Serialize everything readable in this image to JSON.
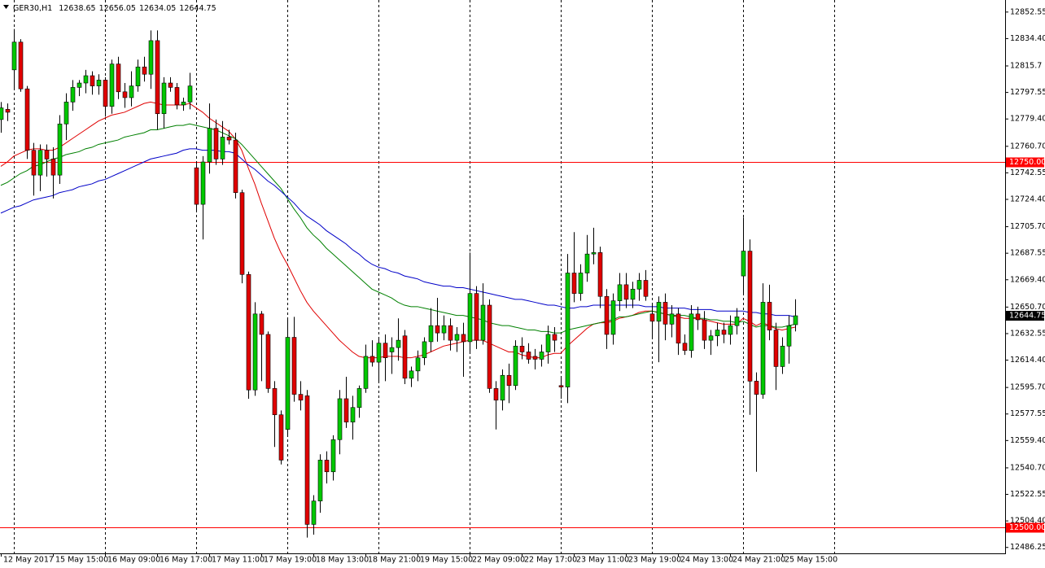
{
  "chart_data": {
    "type": "candlestick",
    "title": "GER30,H1",
    "categories": [
      "12 May 2017",
      null,
      null,
      null,
      null,
      null,
      null,
      null,
      "15 May 15:00",
      null,
      null,
      null,
      null,
      null,
      null,
      null,
      "16 May 09:00",
      null,
      null,
      null,
      null,
      null,
      null,
      null,
      "16 May 17:00",
      null,
      null,
      null,
      null,
      null,
      null,
      null,
      "17 May 11:00",
      null,
      null,
      null,
      null,
      null,
      null,
      null,
      "17 May 19:00",
      null,
      null,
      null,
      null,
      null,
      null,
      null,
      "18 May 13:00",
      null,
      null,
      null,
      null,
      null,
      null,
      null,
      "18 May 21:00",
      null,
      null,
      null,
      null,
      null,
      null,
      null,
      "19 May 15:00",
      null,
      null,
      null,
      null,
      null,
      null,
      null,
      "22 May 09:00",
      null,
      null,
      null,
      null,
      null,
      null,
      null,
      "22 May 17:00",
      null,
      null,
      null,
      null,
      null,
      null,
      null,
      "23 May 11:00",
      null,
      null,
      null,
      null,
      null,
      null,
      null,
      "23 May 19:00",
      null,
      null,
      null,
      null,
      null,
      null,
      null,
      "24 May 13:00",
      null,
      null,
      null,
      null,
      null,
      null,
      null,
      "24 May 21:00",
      null,
      null,
      null,
      null,
      null,
      null,
      null,
      "25 May 15:00",
      null,
      null
    ],
    "open": [
      12779,
      12786,
      12813,
      12832,
      12800,
      12758,
      12741,
      12758,
      12752,
      12741,
      12776,
      12791,
      12801,
      12804,
      12809,
      12802,
      12806,
      12788,
      12817,
      12798,
      12794,
      12802,
      12815,
      12810,
      12833,
      12783,
      12804,
      12801,
      12789,
      12791,
      12746,
      12721,
      12750,
      12773,
      12752,
      12767,
      12765,
      12729,
      12673,
      12594,
      12646,
      12632,
      12595,
      12577,
      12567,
      12630,
      12591,
      12590,
      12502,
      12518,
      12546,
      12538,
      12560,
      12588,
      12572,
      12582,
      12595,
      12617,
      12613,
      12626,
      12620,
      12623,
      12631,
      12602,
      12607,
      12616,
      12627,
      12638,
      12633,
      12638,
      12628,
      12632,
      12627,
      12660,
      12628,
      12652,
      12595,
      12587,
      12604,
      12597,
      12624,
      12620,
      12617,
      12615,
      12620,
      12632,
      12597,
      12596,
      12674,
      12660,
      12674,
      12687,
      12688,
      12658,
      12632,
      12655,
      12666,
      12656,
      12663,
      12669,
      12646,
      12641,
      12654,
      12639,
      12646,
      12626,
      12621,
      12646,
      12642,
      12628,
      12631,
      12635,
      12632,
      12638,
      12672,
      12689,
      12600,
      12591,
      12654,
      12635,
      12610,
      12624,
      12638.65
    ],
    "high": [
      12791,
      12790,
      12841,
      12834,
      12802,
      12763,
      12762,
      12762,
      12760,
      12782,
      12797,
      12806,
      12806,
      12813,
      12812,
      12810,
      12808,
      12820,
      12822,
      12804,
      12812,
      12820,
      12822,
      12840,
      12840,
      12808,
      12808,
      12804,
      12794,
      12811,
      12750,
      12754,
      12790,
      12779,
      12778,
      12772,
      12770,
      12731,
      12675,
      12654,
      12648,
      12634,
      12600,
      12580,
      12642,
      12644,
      12600,
      12594,
      12522,
      12550,
      12552,
      12563,
      12594,
      12603,
      12590,
      12597,
      12625,
      12628,
      12630,
      12632,
      12630,
      12643,
      12635,
      12610,
      12621,
      12630,
      12650,
      12657,
      12645,
      12643,
      12637,
      12640,
      12688,
      12665,
      12667,
      12656,
      12600,
      12608,
      12612,
      12628,
      12630,
      12626,
      12622,
      12625,
      12638,
      12637,
      12602,
      12687,
      12702,
      12680,
      12700,
      12705,
      12692,
      12663,
      12660,
      12674,
      12674,
      12668,
      12674,
      12676,
      12652,
      12658,
      12660,
      12652,
      12650,
      12632,
      12652,
      12651,
      12648,
      12635,
      12640,
      12640,
      12645,
      12650,
      12712,
      12697,
      12606,
      12667,
      12666,
      12640,
      12630,
      12645,
      12656.05
    ],
    "low": [
      12770,
      12778,
      12800,
      12798,
      12752,
      12727,
      12730,
      12740,
      12725,
      12735,
      12765,
      12785,
      12795,
      12797,
      12796,
      12796,
      12781,
      12783,
      12793,
      12787,
      12788,
      12798,
      12805,
      12800,
      12772,
      12773,
      12798,
      12786,
      12785,
      12786,
      12717,
      12697,
      12742,
      12748,
      12748,
      12762,
      12725,
      12667,
      12588,
      12590,
      12600,
      12592,
      12555,
      12543,
      12562,
      12586,
      12580,
      12493,
      12495,
      12510,
      12530,
      12532,
      12550,
      12568,
      12560,
      12575,
      12592,
      12610,
      12600,
      12600,
      12605,
      12614,
      12598,
      12596,
      12600,
      12611,
      12620,
      12627,
      12628,
      12621,
      12620,
      12603,
      12620,
      12622,
      12625,
      12592,
      12567,
      12580,
      12585,
      12594,
      12615,
      12612,
      12608,
      12610,
      12612,
      12620,
      12588,
      12585,
      12654,
      12655,
      12668,
      12680,
      12650,
      12622,
      12625,
      12648,
      12650,
      12650,
      12655,
      12655,
      12630,
      12613,
      12628,
      12630,
      12618,
      12618,
      12616,
      12635,
      12622,
      12618,
      12624,
      12626,
      12625,
      12632,
      12660,
      12577,
      12538,
      12588,
      12628,
      12594,
      12605,
      12612,
      12634.05
    ],
    "close": [
      12787,
      12784,
      12832,
      12800,
      12758,
      12741,
      12758,
      12752,
      12741,
      12776,
      12791,
      12801,
      12804,
      12809,
      12802,
      12806,
      12788,
      12817,
      12798,
      12794,
      12802,
      12815,
      12810,
      12833,
      12783,
      12804,
      12801,
      12789,
      12791,
      12802,
      12721,
      12750,
      12773,
      12752,
      12767,
      12765,
      12729,
      12673,
      12594,
      12646,
      12632,
      12595,
      12577,
      12546,
      12630,
      12591,
      12587,
      12502,
      12518,
      12546,
      12538,
      12560,
      12588,
      12572,
      12582,
      12595,
      12617,
      12613,
      12626,
      12616,
      12623,
      12628,
      12602,
      12607,
      12616,
      12627,
      12638,
      12633,
      12638,
      12628,
      12632,
      12627,
      12660,
      12628,
      12652,
      12595,
      12587,
      12604,
      12597,
      12624,
      12620,
      12615,
      12615,
      12620,
      12632,
      12628,
      12596,
      12674,
      12660,
      12674,
      12687,
      12688,
      12658,
      12632,
      12655,
      12666,
      12656,
      12663,
      12669,
      12658,
      12641,
      12654,
      12639,
      12646,
      12626,
      12621,
      12646,
      12642,
      12628,
      12631,
      12635,
      12632,
      12638,
      12644,
      12689,
      12600,
      12591,
      12654,
      12635,
      12610,
      12624,
      12638,
      12644.75
    ],
    "up_color": "#00c800",
    "down_color": "#e00000",
    "series": [
      {
        "color": "#e00000",
        "values": [
          12747,
          12750,
          12754,
          12756,
          12758,
          12759,
          12759,
          12758,
          12758,
          12760,
          12763,
          12766,
          12769,
          12772,
          12775,
          12778,
          12780,
          12782,
          12783,
          12784,
          12786,
          12788,
          12790,
          12791,
          12790,
          12789,
          12789,
          12789,
          12789,
          12790,
          12787,
          12784,
          12780,
          12777,
          12774,
          12771,
          12766,
          12758,
          12746,
          12735,
          12722,
          12710,
          12698,
          12688,
          12680,
          12671,
          12662,
          12654,
          12648,
          12643,
          12638,
          12633,
          12628,
          12624,
          12620,
          12617,
          12616,
          12616,
          12616,
          12617,
          12617,
          12617,
          12616,
          12616,
          12617,
          12618,
          12620,
          12622,
          12624,
          12625,
          12626,
          12627,
          12628,
          12628,
          12628,
          12626,
          12624,
          12622,
          12620,
          12620,
          12618,
          12617,
          12616,
          12616,
          12618,
          12619,
          12619,
          12624,
          12628,
          12632,
          12636,
          12639,
          12640,
          12640,
          12641,
          12643,
          12644,
          12645,
          12647,
          12648,
          12648,
          12647,
          12646,
          12645,
          12644,
          12643,
          12643,
          12643,
          12642,
          12641,
          12640,
          12639,
          12639,
          12639,
          12643,
          12641,
          12638,
          12640,
          12638,
          12636,
          12635,
          12636,
          12637
        ]
      },
      {
        "color": "#008000",
        "values": [
          12734,
          12736,
          12739,
          12742,
          12744,
          12747,
          12748,
          12750,
          12752,
          12753,
          12755,
          12756,
          12757,
          12759,
          12760,
          12762,
          12763,
          12764,
          12765,
          12767,
          12768,
          12769,
          12770,
          12772,
          12772,
          12773,
          12774,
          12775,
          12775,
          12776,
          12775,
          12774,
          12773,
          12772,
          12770,
          12768,
          12766,
          12762,
          12757,
          12752,
          12747,
          12742,
          12737,
          12732,
          12725,
          12718,
          12712,
          12705,
          12700,
          12696,
          12691,
          12687,
          12683,
          12679,
          12675,
          12671,
          12667,
          12663,
          12661,
          12659,
          12657,
          12654,
          12652,
          12651,
          12651,
          12650,
          12649,
          12648,
          12647,
          12646,
          12645,
          12645,
          12644,
          12643,
          12642,
          12640,
          12639,
          12638,
          12638,
          12637,
          12636,
          12635,
          12635,
          12634,
          12634,
          12633,
          12633,
          12635,
          12636,
          12637,
          12638,
          12639,
          12640,
          12641,
          12642,
          12644,
          12644,
          12645,
          12646,
          12647,
          12648,
          12647,
          12646,
          12645,
          12645,
          12645,
          12644,
          12643,
          12643,
          12642,
          12642,
          12641,
          12641,
          12640,
          12641,
          12639,
          12637,
          12638,
          12638,
          12637,
          12637,
          12638,
          12639
        ]
      },
      {
        "color": "#0000c8",
        "values": [
          12715,
          12717,
          12719,
          12720,
          12722,
          12724,
          12725,
          12726,
          12727,
          12729,
          12730,
          12731,
          12733,
          12734,
          12735,
          12737,
          12738,
          12740,
          12742,
          12744,
          12746,
          12748,
          12750,
          12752,
          12753,
          12754,
          12755,
          12756,
          12758,
          12759,
          12759,
          12758,
          12758,
          12758,
          12757,
          12757,
          12756,
          12752,
          12748,
          12745,
          12741,
          12737,
          12734,
          12730,
          12726,
          12722,
          12717,
          12713,
          12710,
          12707,
          12703,
          12700,
          12697,
          12694,
          12690,
          12687,
          12683,
          12680,
          12678,
          12677,
          12675,
          12674,
          12672,
          12671,
          12670,
          12668,
          12667,
          12666,
          12665,
          12665,
          12664,
          12664,
          12663,
          12662,
          12661,
          12660,
          12659,
          12658,
          12657,
          12656,
          12656,
          12655,
          12654,
          12653,
          12652,
          12652,
          12651,
          12650,
          12650,
          12651,
          12651,
          12652,
          12652,
          12652,
          12652,
          12652,
          12652,
          12652,
          12652,
          12651,
          12651,
          12651,
          12650,
          12650,
          12650,
          12650,
          12649,
          12649,
          12649,
          12649,
          12648,
          12648,
          12648,
          12648,
          12648,
          12647,
          12647,
          12646,
          12646,
          12645,
          12645,
          12645,
          12644
        ]
      }
    ],
    "levels": [
      {
        "value": 12750,
        "label": "12750.00"
      },
      {
        "value": 12500,
        "label": "12500.00"
      }
    ],
    "level_color": "#ff0000",
    "ylim": [
      12482.2,
      12860.8
    ],
    "yticks": [
      12852.55,
      {
        "value": 12834.4,
        "label": "12834.40"
      },
      12815.7,
      12797.55,
      {
        "value": 12779.4,
        "label": "12779.40"
      },
      {
        "value": 12760.7,
        "label": "12760.70"
      },
      12742.55,
      {
        "value": 12724.4,
        "label": "12724.40"
      },
      {
        "value": 12705.7,
        "label": "12705.70"
      },
      12687.55,
      {
        "value": 12669.4,
        "label": "12669.40"
      },
      {
        "value": 12650.7,
        "label": "12650.70"
      },
      12632.55,
      {
        "value": 12614.4,
        "label": "12614.40"
      },
      {
        "value": 12595.7,
        "label": "12595.70"
      },
      12577.55,
      {
        "value": 12559.4,
        "label": "12559.40"
      },
      {
        "value": 12540.7,
        "label": "12540.70"
      },
      12522.55,
      {
        "value": 12504.4,
        "label": "12504.40"
      },
      12486.25
    ]
  }
}
